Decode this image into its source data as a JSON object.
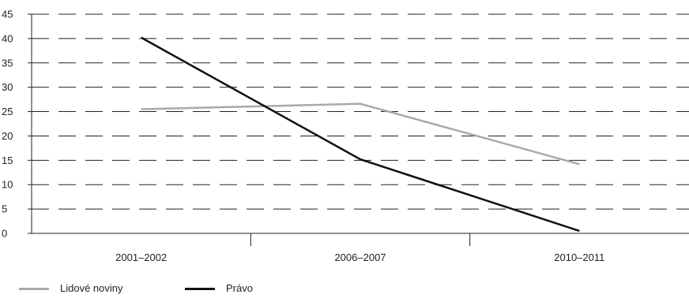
{
  "chart_data": {
    "type": "line",
    "title": "",
    "xlabel": "",
    "ylabel": "",
    "categories": [
      "2001–2002",
      "2006–2007",
      "2010–2011"
    ],
    "ylim": [
      0,
      45
    ],
    "yticks": [
      0,
      5,
      10,
      15,
      20,
      25,
      30,
      35,
      40,
      45
    ],
    "grid": true,
    "legend_position": "bottom-left",
    "series": [
      {
        "name": "Lidové noviny",
        "values": [
          25.5,
          26.6,
          14.2
        ],
        "color": "#a9a9a9"
      },
      {
        "name": "Právo",
        "values": [
          40.2,
          15.2,
          0.5
        ],
        "color": "#111111"
      }
    ]
  }
}
